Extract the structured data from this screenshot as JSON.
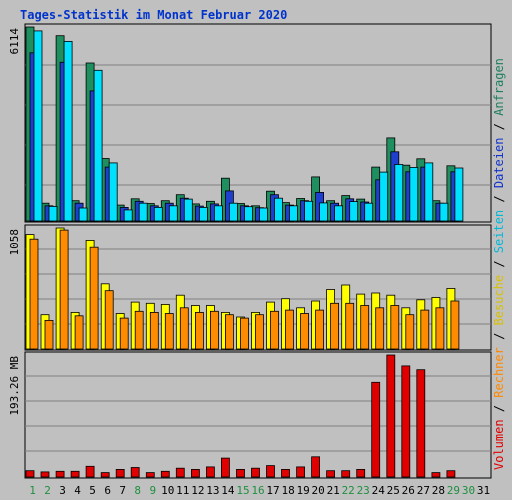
{
  "title": "Tages-Statistik im Monat Februar 2020",
  "colors": {
    "background": "#c0c0c0",
    "panel": "#c0c0c0",
    "grid": "#808080",
    "title": "#0033cc",
    "axis_label": "#000000",
    "weekday_label": "#000000",
    "weekend_label": "#1f8f3f",
    "legend_volumen": "#e00000",
    "legend_rechner": "#ff8800",
    "legend_besuche": "#e0c000",
    "legend_seiten": "#00b8d8",
    "legend_dateien": "#1133cc",
    "legend_anfragen": "#1f7f5f",
    "anfragen": "#1f8f5f",
    "dateien": "#1f3fcf",
    "seiten": "#00e0ff",
    "besuche": "#ffff00",
    "rechner": "#ff8c00",
    "volumen": "#e00000"
  },
  "legend": [
    {
      "key": "volumen",
      "label": "Volumen",
      "color": "#e00000"
    },
    {
      "key": "rechner",
      "label": "Rechner",
      "color": "#ff8800"
    },
    {
      "key": "besuche",
      "label": "Besuche",
      "color": "#d8c000"
    },
    {
      "key": "seiten",
      "label": "Seiten",
      "color": "#00b8d8"
    },
    {
      "key": "dateien",
      "label": "Dateien",
      "color": "#1133cc"
    },
    {
      "key": "anfragen",
      "label": "Anfragen",
      "color": "#1f7f5f"
    }
  ],
  "legend_separator": " / ",
  "chart_data": {
    "type": "bar",
    "title": "Tages-Statistik im Monat Februar 2020",
    "categories": [
      "1",
      "2",
      "3",
      "4",
      "5",
      "6",
      "7",
      "8",
      "9",
      "10",
      "11",
      "12",
      "13",
      "14",
      "15",
      "16",
      "17",
      "18",
      "19",
      "20",
      "21",
      "22",
      "23",
      "24",
      "25",
      "26",
      "27",
      "28",
      "29",
      "30",
      "31"
    ],
    "weekend_days": [
      1,
      2,
      8,
      9,
      15,
      16,
      22,
      23,
      29,
      30
    ],
    "grid": true,
    "panels": [
      {
        "id": "requests",
        "ymax_label": "6114",
        "ymax": 6114,
        "series": [
          {
            "name": "Anfragen",
            "values": [
              6114,
              560,
              5840,
              640,
              4980,
              1970,
              500,
              700,
              550,
              640,
              830,
              540,
              620,
              1350,
              550,
              480,
              940,
              580,
              710,
              1390,
              640,
              800,
              690,
              1700,
              2620,
              1760,
              1960,
              640,
              1740,
              0,
              0
            ]
          },
          {
            "name": "Dateien",
            "values": [
              5300,
              480,
              5000,
              560,
              4100,
              1700,
              430,
              620,
              480,
              560,
              720,
              470,
              540,
              950,
              480,
              420,
              830,
              500,
              640,
              900,
              560,
              700,
              600,
              1300,
              2180,
              1550,
              1700,
              560,
              1550,
              0,
              0
            ]
          },
          {
            "name": "Seiten",
            "values": [
              5990,
              460,
              5660,
              410,
              4750,
              1830,
              350,
              560,
              430,
              480,
              690,
              430,
              480,
              560,
              450,
              410,
              720,
              480,
              620,
              570,
              480,
              610,
              560,
              1540,
              1780,
              1690,
              1830,
              560,
              1670,
              0,
              0
            ]
          }
        ]
      },
      {
        "id": "visits",
        "ymax_label": "1058",
        "ymax": 1058,
        "series": [
          {
            "name": "Besuche",
            "values": [
              1000,
              300,
              1058,
              320,
              950,
              570,
              310,
              410,
              400,
              390,
              470,
              380,
              380,
              320,
              280,
              320,
              410,
              440,
              360,
              420,
              520,
              560,
              480,
              490,
              470,
              360,
              430,
              450,
              530,
              0,
              0
            ]
          },
          {
            "name": "Rechner",
            "values": [
              960,
              250,
              1040,
              290,
              890,
              510,
              270,
              330,
              320,
              310,
              360,
              320,
              330,
              300,
              270,
              300,
              330,
              340,
              310,
              340,
              400,
              400,
              380,
              360,
              380,
              300,
              340,
              360,
              420,
              0,
              0
            ]
          }
        ]
      },
      {
        "id": "volume",
        "ymax_label": "193.26 MB",
        "ymax": 193.26,
        "series": [
          {
            "name": "Volumen",
            "values": [
              10,
              8,
              9,
              9,
              17,
              7,
              12,
              15,
              7,
              9,
              14,
              12,
              16,
              30,
              12,
              14,
              18,
              12,
              16,
              32,
              10,
              10,
              12,
              150,
              193.26,
              176,
              170,
              7,
              10,
              0,
              0
            ]
          }
        ]
      }
    ]
  }
}
